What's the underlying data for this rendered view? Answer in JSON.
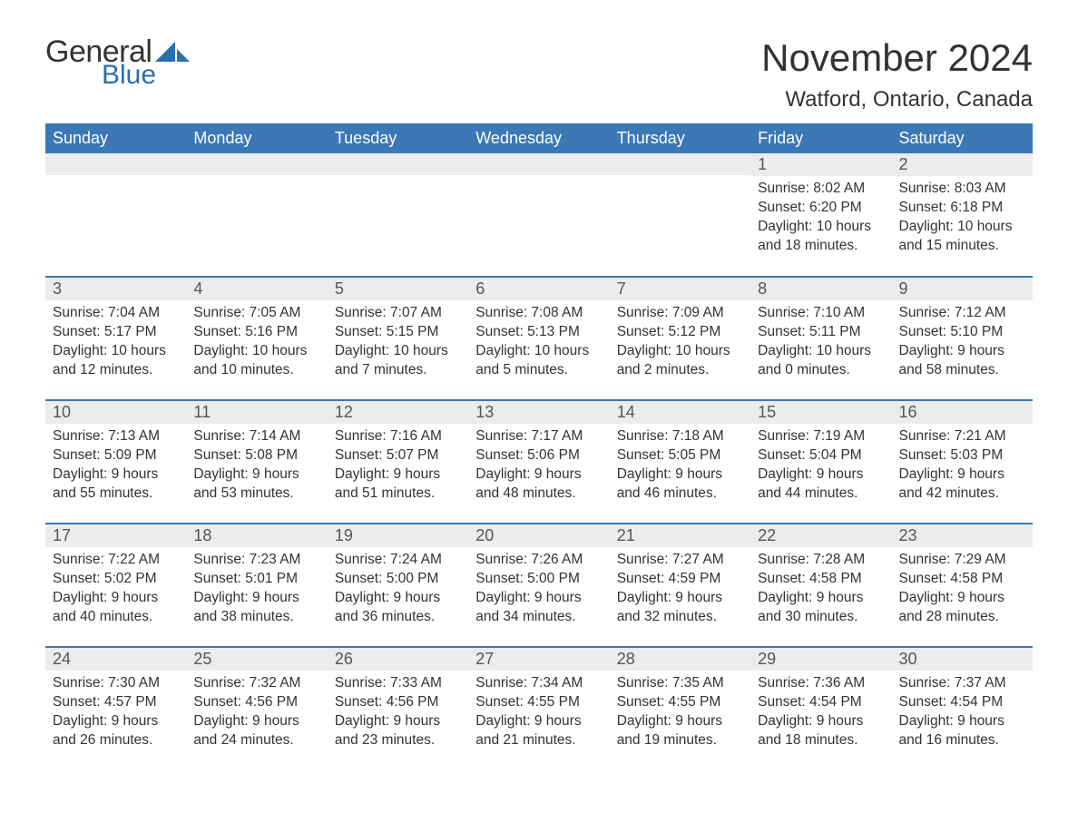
{
  "branding": {
    "word1": "General",
    "word2": "Blue",
    "word1_color": "#333333",
    "word2_color": "#2b6fb0",
    "sail_color": "#2b6fb0"
  },
  "title": "November 2024",
  "location": "Watford, Ontario, Canada",
  "colors": {
    "header_bg": "#3b78b5",
    "header_text": "#ffffff",
    "row_border": "#3b78b5",
    "daynum_bg": "#ececec",
    "body_text": "#333333",
    "background": "#ffffff"
  },
  "fonts": {
    "title_size_pt": 32,
    "location_size_pt": 18,
    "weekday_size_pt": 14,
    "daynum_size_pt": 14,
    "body_size_pt": 12
  },
  "weekdays": [
    "Sunday",
    "Monday",
    "Tuesday",
    "Wednesday",
    "Thursday",
    "Friday",
    "Saturday"
  ],
  "weeks": [
    [
      null,
      null,
      null,
      null,
      null,
      {
        "n": "1",
        "sunrise": "Sunrise: 8:02 AM",
        "sunset": "Sunset: 6:20 PM",
        "day1": "Daylight: 10 hours",
        "day2": "and 18 minutes."
      },
      {
        "n": "2",
        "sunrise": "Sunrise: 8:03 AM",
        "sunset": "Sunset: 6:18 PM",
        "day1": "Daylight: 10 hours",
        "day2": "and 15 minutes."
      }
    ],
    [
      {
        "n": "3",
        "sunrise": "Sunrise: 7:04 AM",
        "sunset": "Sunset: 5:17 PM",
        "day1": "Daylight: 10 hours",
        "day2": "and 12 minutes."
      },
      {
        "n": "4",
        "sunrise": "Sunrise: 7:05 AM",
        "sunset": "Sunset: 5:16 PM",
        "day1": "Daylight: 10 hours",
        "day2": "and 10 minutes."
      },
      {
        "n": "5",
        "sunrise": "Sunrise: 7:07 AM",
        "sunset": "Sunset: 5:15 PM",
        "day1": "Daylight: 10 hours",
        "day2": "and 7 minutes."
      },
      {
        "n": "6",
        "sunrise": "Sunrise: 7:08 AM",
        "sunset": "Sunset: 5:13 PM",
        "day1": "Daylight: 10 hours",
        "day2": "and 5 minutes."
      },
      {
        "n": "7",
        "sunrise": "Sunrise: 7:09 AM",
        "sunset": "Sunset: 5:12 PM",
        "day1": "Daylight: 10 hours",
        "day2": "and 2 minutes."
      },
      {
        "n": "8",
        "sunrise": "Sunrise: 7:10 AM",
        "sunset": "Sunset: 5:11 PM",
        "day1": "Daylight: 10 hours",
        "day2": "and 0 minutes."
      },
      {
        "n": "9",
        "sunrise": "Sunrise: 7:12 AM",
        "sunset": "Sunset: 5:10 PM",
        "day1": "Daylight: 9 hours",
        "day2": "and 58 minutes."
      }
    ],
    [
      {
        "n": "10",
        "sunrise": "Sunrise: 7:13 AM",
        "sunset": "Sunset: 5:09 PM",
        "day1": "Daylight: 9 hours",
        "day2": "and 55 minutes."
      },
      {
        "n": "11",
        "sunrise": "Sunrise: 7:14 AM",
        "sunset": "Sunset: 5:08 PM",
        "day1": "Daylight: 9 hours",
        "day2": "and 53 minutes."
      },
      {
        "n": "12",
        "sunrise": "Sunrise: 7:16 AM",
        "sunset": "Sunset: 5:07 PM",
        "day1": "Daylight: 9 hours",
        "day2": "and 51 minutes."
      },
      {
        "n": "13",
        "sunrise": "Sunrise: 7:17 AM",
        "sunset": "Sunset: 5:06 PM",
        "day1": "Daylight: 9 hours",
        "day2": "and 48 minutes."
      },
      {
        "n": "14",
        "sunrise": "Sunrise: 7:18 AM",
        "sunset": "Sunset: 5:05 PM",
        "day1": "Daylight: 9 hours",
        "day2": "and 46 minutes."
      },
      {
        "n": "15",
        "sunrise": "Sunrise: 7:19 AM",
        "sunset": "Sunset: 5:04 PM",
        "day1": "Daylight: 9 hours",
        "day2": "and 44 minutes."
      },
      {
        "n": "16",
        "sunrise": "Sunrise: 7:21 AM",
        "sunset": "Sunset: 5:03 PM",
        "day1": "Daylight: 9 hours",
        "day2": "and 42 minutes."
      }
    ],
    [
      {
        "n": "17",
        "sunrise": "Sunrise: 7:22 AM",
        "sunset": "Sunset: 5:02 PM",
        "day1": "Daylight: 9 hours",
        "day2": "and 40 minutes."
      },
      {
        "n": "18",
        "sunrise": "Sunrise: 7:23 AM",
        "sunset": "Sunset: 5:01 PM",
        "day1": "Daylight: 9 hours",
        "day2": "and 38 minutes."
      },
      {
        "n": "19",
        "sunrise": "Sunrise: 7:24 AM",
        "sunset": "Sunset: 5:00 PM",
        "day1": "Daylight: 9 hours",
        "day2": "and 36 minutes."
      },
      {
        "n": "20",
        "sunrise": "Sunrise: 7:26 AM",
        "sunset": "Sunset: 5:00 PM",
        "day1": "Daylight: 9 hours",
        "day2": "and 34 minutes."
      },
      {
        "n": "21",
        "sunrise": "Sunrise: 7:27 AM",
        "sunset": "Sunset: 4:59 PM",
        "day1": "Daylight: 9 hours",
        "day2": "and 32 minutes."
      },
      {
        "n": "22",
        "sunrise": "Sunrise: 7:28 AM",
        "sunset": "Sunset: 4:58 PM",
        "day1": "Daylight: 9 hours",
        "day2": "and 30 minutes."
      },
      {
        "n": "23",
        "sunrise": "Sunrise: 7:29 AM",
        "sunset": "Sunset: 4:58 PM",
        "day1": "Daylight: 9 hours",
        "day2": "and 28 minutes."
      }
    ],
    [
      {
        "n": "24",
        "sunrise": "Sunrise: 7:30 AM",
        "sunset": "Sunset: 4:57 PM",
        "day1": "Daylight: 9 hours",
        "day2": "and 26 minutes."
      },
      {
        "n": "25",
        "sunrise": "Sunrise: 7:32 AM",
        "sunset": "Sunset: 4:56 PM",
        "day1": "Daylight: 9 hours",
        "day2": "and 24 minutes."
      },
      {
        "n": "26",
        "sunrise": "Sunrise: 7:33 AM",
        "sunset": "Sunset: 4:56 PM",
        "day1": "Daylight: 9 hours",
        "day2": "and 23 minutes."
      },
      {
        "n": "27",
        "sunrise": "Sunrise: 7:34 AM",
        "sunset": "Sunset: 4:55 PM",
        "day1": "Daylight: 9 hours",
        "day2": "and 21 minutes."
      },
      {
        "n": "28",
        "sunrise": "Sunrise: 7:35 AM",
        "sunset": "Sunset: 4:55 PM",
        "day1": "Daylight: 9 hours",
        "day2": "and 19 minutes."
      },
      {
        "n": "29",
        "sunrise": "Sunrise: 7:36 AM",
        "sunset": "Sunset: 4:54 PM",
        "day1": "Daylight: 9 hours",
        "day2": "and 18 minutes."
      },
      {
        "n": "30",
        "sunrise": "Sunrise: 7:37 AM",
        "sunset": "Sunset: 4:54 PM",
        "day1": "Daylight: 9 hours",
        "day2": "and 16 minutes."
      }
    ]
  ]
}
